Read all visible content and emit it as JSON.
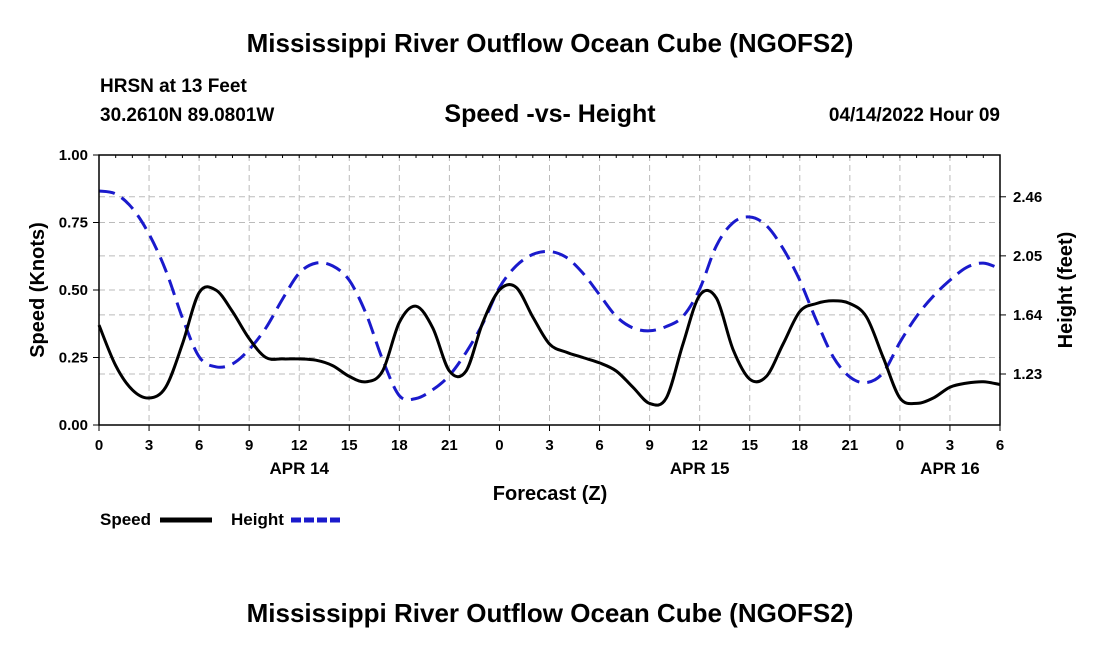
{
  "titles": {
    "top": "Mississippi River Outflow Ocean Cube (NGOFS2)",
    "bottom": "Mississippi River Outflow Ocean Cube (NGOFS2)"
  },
  "header": {
    "station": "HRSN at 13 Feet",
    "coords": "30.2610N  89.0801W",
    "subtitle": "Speed -vs- Height",
    "datetime": "04/14/2022 Hour 09"
  },
  "colors": {
    "speed": "#000000",
    "height": "#1a1acc",
    "grid": "#bbbbbb"
  },
  "chart_data": {
    "type": "line",
    "xlabel": "Forecast (Z)",
    "ylabel": "Speed (Knots)",
    "y2label": "Height (feet)",
    "xlim": [
      0,
      54
    ],
    "ylim": [
      0,
      1
    ],
    "y2lim": [
      0.876,
      2.75
    ],
    "x_ticks": [
      0,
      3,
      6,
      9,
      12,
      15,
      18,
      21,
      24,
      27,
      30,
      33,
      36,
      39,
      42,
      45,
      48,
      51,
      54
    ],
    "x_tick_labels": [
      "0",
      "3",
      "6",
      "9",
      "12",
      "15",
      "18",
      "21",
      "0",
      "3",
      "6",
      "9",
      "12",
      "15",
      "18",
      "21",
      "0",
      "3",
      "6"
    ],
    "date_labels": [
      {
        "x": 12,
        "label": "APR 14"
      },
      {
        "x": 36,
        "label": "APR 15"
      },
      {
        "x": 51,
        "label": "APR 16"
      }
    ],
    "y_ticks": [
      0,
      0.25,
      0.5,
      0.75,
      1.0
    ],
    "y_tick_labels": [
      "0.00",
      "0.25",
      "0.50",
      "0.75",
      "1.00"
    ],
    "y2_ticks": [
      1.23,
      1.64,
      2.05,
      2.46
    ],
    "y2_tick_labels": [
      "1.23",
      "1.64",
      "2.05",
      "2.46"
    ],
    "series": [
      {
        "name": "Speed",
        "axis": "left",
        "style": "solid",
        "x": [
          0,
          1,
          2,
          3,
          4,
          5,
          6,
          7,
          8,
          9,
          10,
          11,
          12,
          13,
          14,
          15,
          16,
          17,
          18,
          19,
          20,
          21,
          22,
          23,
          24,
          25,
          26,
          27,
          28,
          29,
          30,
          31,
          32,
          33,
          34,
          35,
          36,
          37,
          38,
          39,
          40,
          41,
          42,
          43,
          44,
          45,
          46,
          47,
          48,
          49,
          50,
          51,
          52,
          53,
          54
        ],
        "values": [
          0.37,
          0.22,
          0.13,
          0.1,
          0.14,
          0.3,
          0.49,
          0.5,
          0.42,
          0.32,
          0.25,
          0.245,
          0.245,
          0.24,
          0.22,
          0.18,
          0.16,
          0.2,
          0.38,
          0.44,
          0.36,
          0.2,
          0.2,
          0.38,
          0.5,
          0.51,
          0.4,
          0.3,
          0.27,
          0.25,
          0.23,
          0.2,
          0.14,
          0.08,
          0.1,
          0.3,
          0.48,
          0.47,
          0.28,
          0.17,
          0.18,
          0.3,
          0.42,
          0.45,
          0.46,
          0.45,
          0.4,
          0.25,
          0.1,
          0.08,
          0.1,
          0.14,
          0.155,
          0.16,
          0.15
        ]
      },
      {
        "name": "Height",
        "axis": "right",
        "style": "dashed",
        "x": [
          0,
          1,
          2,
          3,
          4,
          5,
          6,
          7,
          8,
          9,
          10,
          11,
          12,
          13,
          14,
          15,
          16,
          17,
          18,
          19,
          20,
          21,
          22,
          23,
          24,
          25,
          26,
          27,
          28,
          29,
          30,
          31,
          32,
          33,
          34,
          35,
          36,
          37,
          38,
          39,
          40,
          41,
          42,
          43,
          44,
          45,
          46,
          47,
          48,
          49,
          50,
          51,
          52,
          53,
          54
        ],
        "values": [
          2.5,
          2.48,
          2.38,
          2.2,
          1.95,
          1.62,
          1.35,
          1.28,
          1.3,
          1.4,
          1.55,
          1.75,
          1.93,
          2.0,
          1.98,
          1.88,
          1.65,
          1.33,
          1.08,
          1.06,
          1.12,
          1.22,
          1.38,
          1.58,
          1.83,
          1.98,
          2.06,
          2.08,
          2.04,
          1.93,
          1.78,
          1.63,
          1.55,
          1.53,
          1.56,
          1.63,
          1.82,
          2.12,
          2.28,
          2.32,
          2.26,
          2.1,
          1.88,
          1.6,
          1.35,
          1.21,
          1.17,
          1.24,
          1.45,
          1.63,
          1.77,
          1.88,
          1.97,
          2.0,
          1.96
        ]
      }
    ],
    "legend": [
      {
        "label": "Speed",
        "series": "Speed"
      },
      {
        "label": "Height",
        "series": "Height"
      }
    ],
    "legend_position": "bottom-left",
    "grid": true
  }
}
